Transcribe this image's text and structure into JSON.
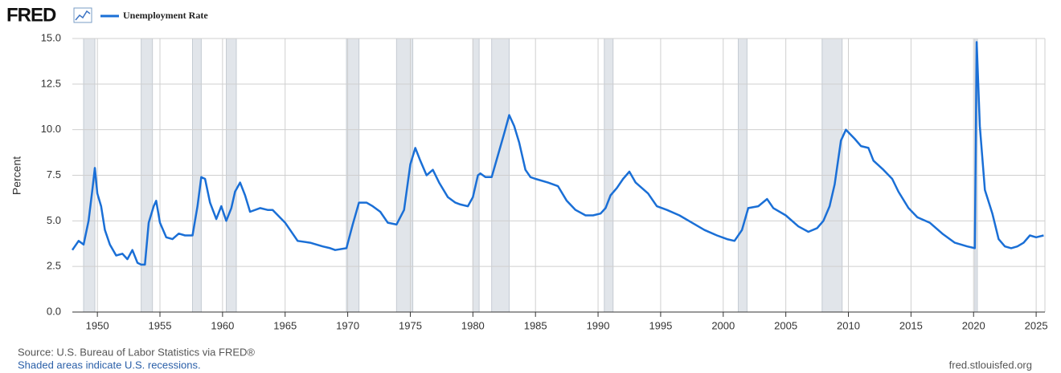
{
  "header": {
    "logo": "FRED"
  },
  "chart_data": {
    "type": "line",
    "y_label": "Percent",
    "series": [
      {
        "name": "Unemployment Rate",
        "color": "#1a6fd6",
        "values": [
          3.4,
          3.9,
          3.7,
          5.0,
          6.7,
          7.9,
          6.5,
          5.8,
          4.5,
          3.7,
          3.1,
          3.2,
          2.9,
          3.4,
          2.7,
          2.6,
          2.6,
          4.9,
          5.8,
          6.1,
          4.9,
          4.1,
          4.0,
          4.3,
          4.2,
          4.2,
          5.8,
          7.4,
          7.3,
          6.0,
          5.1,
          5.8,
          5.0,
          5.7,
          6.6,
          7.1,
          6.4,
          5.5,
          5.7,
          5.6,
          5.6,
          4.9,
          3.9,
          3.8,
          3.6,
          3.5,
          3.4,
          3.5,
          4.8,
          6.0,
          6.0,
          5.8,
          5.5,
          4.9,
          4.8,
          5.6,
          8.1,
          9.0,
          8.3,
          7.5,
          7.8,
          7.1,
          6.3,
          6.0,
          5.9,
          5.8,
          6.3,
          7.5,
          7.6,
          7.4,
          7.4,
          8.6,
          9.8,
          10.8,
          10.2,
          9.3,
          7.8,
          7.4,
          7.3,
          7.1,
          6.9,
          6.1,
          5.6,
          5.3,
          5.3,
          5.4,
          5.7,
          6.4,
          6.8,
          7.3,
          7.7,
          7.1,
          6.5,
          5.8,
          5.6,
          5.3,
          4.9,
          4.5,
          4.2,
          4.0,
          3.9,
          4.5,
          5.7,
          5.8,
          6.2,
          5.7,
          5.3,
          4.7,
          4.4,
          4.6,
          5.0,
          5.8,
          7.0,
          9.4,
          10.0,
          9.5,
          9.1,
          9.0,
          8.3,
          7.8,
          7.3,
          6.6,
          5.7,
          5.2,
          4.9,
          4.3,
          3.8,
          3.6,
          3.5,
          14.8,
          10.2,
          6.7,
          5.4,
          4.0,
          3.6,
          3.5,
          3.6,
          3.8,
          4.2,
          4.1,
          4.2
        ]
      }
    ],
    "x": [
      1948.0,
      1948.5,
      1948.9,
      1949.3,
      1949.6,
      1949.8,
      1950.0,
      1950.3,
      1950.6,
      1951.0,
      1951.5,
      1952.0,
      1952.4,
      1952.8,
      1953.2,
      1953.5,
      1953.8,
      1954.1,
      1954.5,
      1954.7,
      1955.0,
      1955.5,
      1956.0,
      1956.5,
      1957.0,
      1957.6,
      1958.0,
      1958.3,
      1958.6,
      1959.0,
      1959.5,
      1959.9,
      1960.3,
      1960.7,
      1961.0,
      1961.4,
      1961.8,
      1962.2,
      1963.0,
      1963.6,
      1964.0,
      1965.0,
      1966.0,
      1967.0,
      1968.0,
      1968.6,
      1969.0,
      1969.9,
      1970.4,
      1970.9,
      1971.5,
      1972.0,
      1972.6,
      1973.2,
      1973.9,
      1974.5,
      1975.0,
      1975.4,
      1975.8,
      1976.3,
      1976.8,
      1977.3,
      1978.0,
      1978.6,
      1979.0,
      1979.6,
      1980.0,
      1980.4,
      1980.6,
      1981.0,
      1981.5,
      1982.0,
      1982.5,
      1982.9,
      1983.3,
      1983.7,
      1984.2,
      1984.6,
      1985.0,
      1986.0,
      1986.8,
      1987.5,
      1988.2,
      1989.0,
      1989.6,
      1990.2,
      1990.6,
      1991.0,
      1991.5,
      1992.0,
      1992.5,
      1993.0,
      1994.0,
      1994.7,
      1995.5,
      1996.5,
      1997.5,
      1998.5,
      1999.5,
      2000.3,
      2000.9,
      2001.5,
      2002.0,
      2002.8,
      2003.5,
      2004.0,
      2005.0,
      2006.0,
      2006.8,
      2007.5,
      2008.0,
      2008.5,
      2008.9,
      2009.4,
      2009.8,
      2010.5,
      2011.0,
      2011.6,
      2012.0,
      2012.8,
      2013.5,
      2014.0,
      2014.8,
      2015.5,
      2016.5,
      2017.5,
      2018.5,
      2019.5,
      2020.1,
      2020.25,
      2020.5,
      2020.9,
      2021.5,
      2022.0,
      2022.5,
      2023.0,
      2023.5,
      2024.0,
      2024.5,
      2025.0,
      2025.6
    ],
    "recessions": [
      [
        1948.9,
        1949.8
      ],
      [
        1953.5,
        1954.4
      ],
      [
        1957.6,
        1958.3
      ],
      [
        1960.3,
        1961.1
      ],
      [
        1969.9,
        1970.9
      ],
      [
        1973.9,
        1975.2
      ],
      [
        1980.0,
        1980.5
      ],
      [
        1981.5,
        1982.9
      ],
      [
        1990.5,
        1991.2
      ],
      [
        2001.2,
        2001.9
      ],
      [
        2007.9,
        2009.5
      ],
      [
        2020.1,
        2020.3
      ]
    ],
    "recession_color": "#e1e5ea",
    "xlim": [
      1948.0,
      2025.7
    ],
    "ylim": [
      0,
      15
    ],
    "xticks": [
      1950,
      1955,
      1960,
      1965,
      1970,
      1975,
      1980,
      1985,
      1990,
      1995,
      2000,
      2005,
      2010,
      2015,
      2020,
      2025
    ],
    "yticks": [
      {
        "value": 0,
        "label": "0.0"
      },
      2.5,
      {
        "value": 5,
        "label": "5.0"
      },
      7.5,
      {
        "value": 10,
        "label": "10.0"
      },
      12.5,
      {
        "value": 15,
        "label": "15.0"
      }
    ],
    "grid": true
  },
  "footer": {
    "source": "Source: U.S. Bureau of Labor Statistics via FRED®",
    "note": "Shaded areas indicate U.S. recessions.",
    "url": "fred.stlouisfed.org"
  }
}
